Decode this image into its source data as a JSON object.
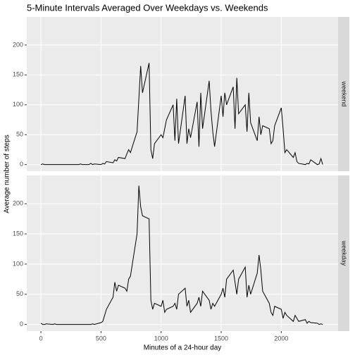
{
  "chart_data": {
    "type": "line",
    "title": "5-Minute Intervals Averaged Over Weekdays vs. Weekends",
    "xlabel": "Minutes of a 24-hour day",
    "ylabel": "Average number of steps",
    "facet": true,
    "grid": true,
    "x": [
      0,
      15,
      30,
      45,
      100,
      115,
      130,
      145,
      200,
      215,
      230,
      245,
      300,
      315,
      330,
      345,
      400,
      415,
      430,
      445,
      500,
      515,
      530,
      545,
      600,
      615,
      630,
      645,
      700,
      715,
      730,
      745,
      800,
      815,
      830,
      845,
      900,
      915,
      930,
      945,
      1000,
      1015,
      1030,
      1045,
      1100,
      1115,
      1130,
      1145,
      1200,
      1215,
      1230,
      1245,
      1300,
      1315,
      1330,
      1345,
      1400,
      1415,
      1430,
      1445,
      1500,
      1515,
      1530,
      1545,
      1600,
      1615,
      1630,
      1645,
      1700,
      1715,
      1730,
      1745,
      1800,
      1815,
      1830,
      1845,
      1900,
      1915,
      1930,
      1945,
      2000,
      2015,
      2030,
      2045,
      2100,
      2115,
      2130,
      2145,
      2200,
      2215,
      2230,
      2245,
      2300,
      2315,
      2330,
      2345
    ],
    "series": [
      {
        "name": "weekend",
        "color": "#000000",
        "values": [
          0,
          1,
          0,
          0,
          0,
          0,
          0,
          0,
          0,
          0,
          0,
          0,
          0,
          0,
          1,
          0,
          0,
          2,
          0,
          1,
          0,
          2,
          1,
          5,
          3,
          8,
          6,
          12,
          10,
          18,
          25,
          20,
          55,
          110,
          165,
          120,
          170,
          25,
          10,
          35,
          50,
          45,
          60,
          75,
          100,
          40,
          110,
          35,
          115,
          35,
          60,
          45,
          105,
          30,
          120,
          60,
          140,
          90,
          55,
          30,
          115,
          80,
          120,
          100,
          130,
          60,
          145,
          85,
          100,
          55,
          120,
          70,
          40,
          80,
          50,
          65,
          60,
          35,
          40,
          65,
          95,
          60,
          20,
          25,
          12,
          20,
          5,
          2,
          0,
          2,
          1,
          8,
          0,
          1,
          10,
          0
        ]
      },
      {
        "name": "weekday",
        "color": "#000000",
        "values": [
          2,
          0,
          0,
          1,
          0,
          1,
          0,
          0,
          0,
          0,
          0,
          0,
          0,
          0,
          0,
          0,
          0,
          0,
          1,
          0,
          3,
          5,
          15,
          25,
          45,
          70,
          55,
          65,
          60,
          55,
          75,
          80,
          150,
          230,
          195,
          180,
          175,
          40,
          25,
          35,
          30,
          40,
          20,
          25,
          30,
          35,
          25,
          50,
          60,
          30,
          40,
          20,
          35,
          45,
          30,
          55,
          40,
          25,
          35,
          30,
          50,
          60,
          45,
          75,
          90,
          70,
          50,
          75,
          95,
          45,
          65,
          50,
          85,
          115,
          90,
          55,
          35,
          20,
          15,
          30,
          25,
          10,
          20,
          15,
          5,
          15,
          10,
          5,
          8,
          2,
          5,
          3,
          2,
          0,
          1,
          0
        ]
      }
    ],
    "xlim": [
      -117.75,
      2472.75
    ],
    "ylim": [
      -11,
      247
    ],
    "xticks": [
      0,
      500,
      1000,
      1500,
      2000
    ],
    "yticks": [
      0,
      50,
      100,
      150,
      200
    ]
  }
}
